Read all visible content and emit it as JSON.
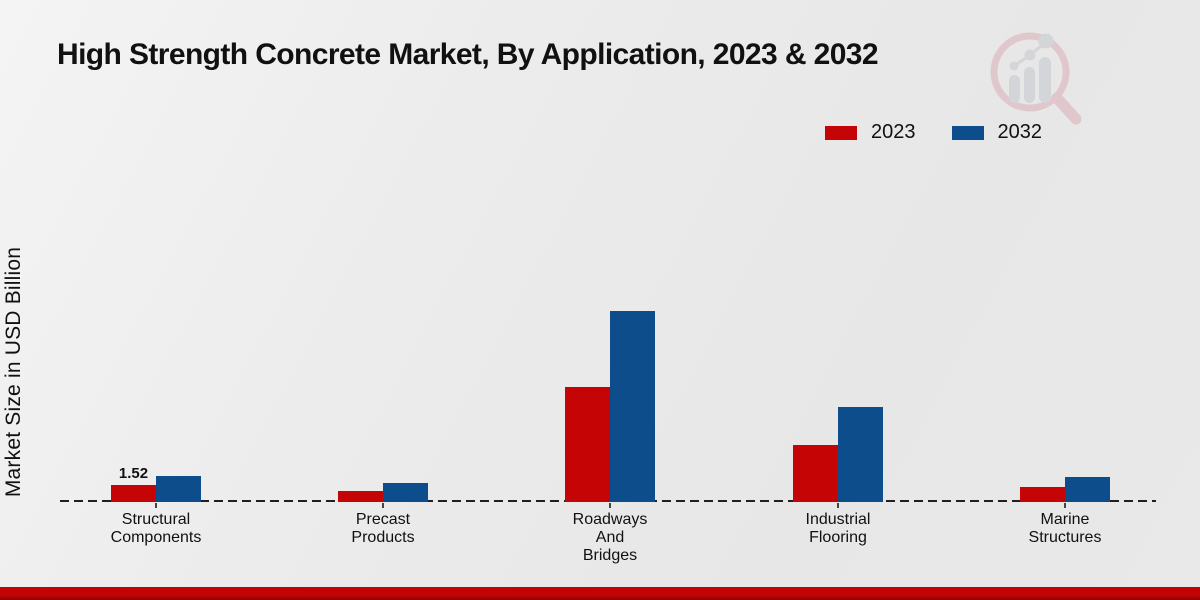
{
  "page_title": "High Strength Concrete Market, By Application, 2023 & 2032",
  "chart_data": {
    "type": "bar",
    "title": "High Strength Concrete Market, By Application, 2023 & 2032",
    "xlabel": "",
    "ylabel": "Market Size in USD Billion",
    "categories": [
      "Structural\nComponents",
      "Precast\nProducts",
      "Roadways\nAnd\nBridges",
      "Industrial\nFlooring",
      "Marine\nStructures"
    ],
    "series": [
      {
        "name": "2023",
        "color": "#c50505",
        "values": [
          1.52,
          1.04,
          10.55,
          5.25,
          1.38
        ]
      },
      {
        "name": "2032",
        "color": "#0d4d8c",
        "values": [
          2.35,
          1.78,
          17.55,
          8.75,
          2.33
        ]
      }
    ],
    "bar_labels": [
      [
        "1.52",
        "",
        "",
        "",
        ""
      ],
      [
        "",
        "",
        "",
        "",
        ""
      ]
    ],
    "legend_position": "top-right",
    "grid": false,
    "baseline": "dashed zero line",
    "ylim": [
      0,
      18
    ]
  },
  "branding": {
    "logo": "magnifier-bar-chart-logo",
    "logo_ring_color": "#d9aeb6",
    "logo_bar_color": "#c5c7cd"
  },
  "footer": {
    "strip_color": "#c40404"
  }
}
